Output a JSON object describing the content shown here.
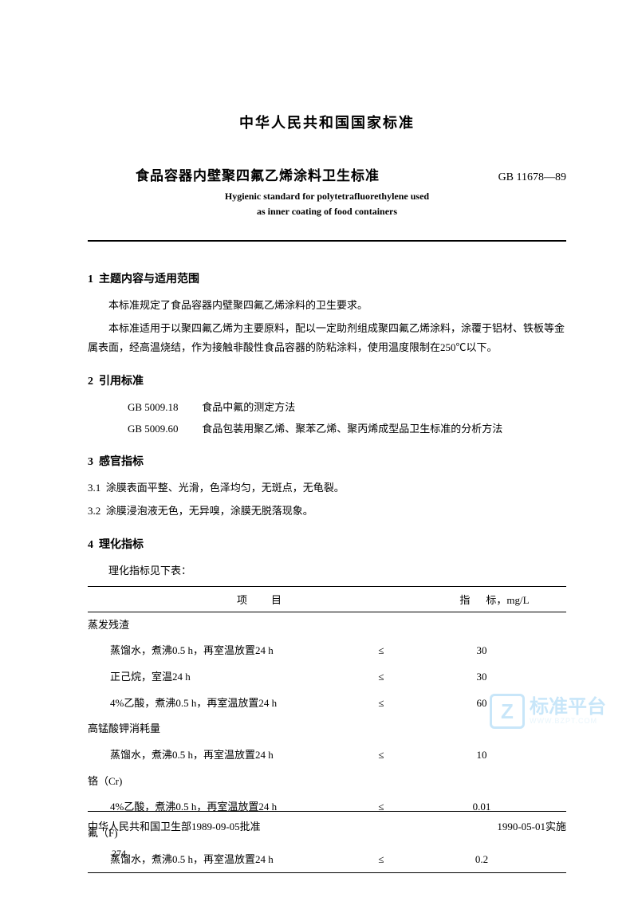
{
  "header": {
    "main_title": "中华人民共和国国家标准",
    "sub_title": "食品容器内壁聚四氟乙烯涂料卫生标准",
    "std_code": "GB 11678—89",
    "eng_title_1": "Hygienic standard for polytetrafluorethylene used",
    "eng_title_2": "as inner coating of food containers"
  },
  "sections": {
    "s1": {
      "num": "1",
      "title": "主题内容与适用范围",
      "p1": "本标准规定了食品容器内壁聚四氟乙烯涂料的卫生要求。",
      "p2": "本标准适用于以聚四氟乙烯为主要原料，配以一定助剂组成聚四氟乙烯涂料，涂覆于铝材、铁板等金属表面，经高温烧结，作为接触非酸性食品容器的防粘涂料，使用温度限制在250℃以下。"
    },
    "s2": {
      "num": "2",
      "title": "引用标准",
      "r1_code": "GB 5009.18",
      "r1_text": "食品中氟的测定方法",
      "r2_code": "GB 5009.60",
      "r2_text": "食品包装用聚乙烯、聚苯乙烯、聚丙烯成型品卫生标准的分析方法"
    },
    "s3": {
      "num": "3",
      "title": "感官指标",
      "p1_num": "3.1",
      "p1": "涂膜表面平整、光滑，色泽均匀，无斑点，无龟裂。",
      "p2_num": "3.2",
      "p2": "涂膜浸泡液无色，无异嗅，涂膜无脱落现象。"
    },
    "s4": {
      "num": "4",
      "title": "理化指标",
      "intro": "理化指标见下表：",
      "head_col1": "项",
      "head_col1b": "目",
      "head_col2": "指",
      "head_col2b": "标，mg/L",
      "le": "≤",
      "rows": {
        "cat1": "蒸发残渣",
        "r1_name": "蒸馏水，煮沸0.5 h，再室温放置24 h",
        "r1_val": "30",
        "r2_name": "正己烷，室温24 h",
        "r2_val": "30",
        "r3_name": "4%乙酸，煮沸0.5 h，再室温放置24 h",
        "r3_val": "60",
        "cat2": "高锰酸钾消耗量",
        "r4_name": "蒸馏水，煮沸0.5 h，再室温放置24 h",
        "r4_val": "10",
        "cat3": "铬（Cr)",
        "r5_name": "4%乙酸，煮沸0.5 h，再室温放置24 h",
        "r5_val": "0.01",
        "cat4": "氟（F)",
        "r6_name": "蒸馏水，煮沸0.5 h，再室温放置24 h",
        "r6_val": "0.2"
      }
    }
  },
  "footer": {
    "left": "中华人民共和国卫生部1989-09-05批准",
    "right": "1990-05-01实施",
    "page_num": "274"
  },
  "watermark": {
    "badge": "Z",
    "cn": "标准平台",
    "en": "WWW.BZPT.COM"
  }
}
